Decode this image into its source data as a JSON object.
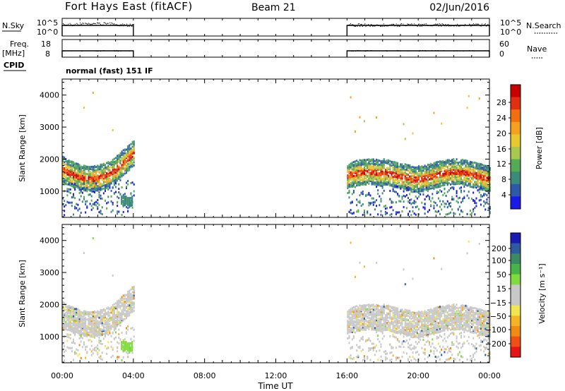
{
  "header": {
    "station": "Fort Hays East (fitACF)",
    "beam": "Beam 21",
    "date": "02/Jun/2016"
  },
  "status_panels": {
    "nsky_label": "N.Sky",
    "nsearch_label": "N.Search",
    "noise_ticks_left": [
      "10^5",
      "10^0"
    ],
    "noise_ticks_right": [
      "10^5",
      "10^0"
    ],
    "freq_label_1": "Freq.",
    "freq_label_2": "[MHz]",
    "freq_ticks": [
      "18",
      "8"
    ],
    "nave_label": "Nave",
    "nave_ticks": [
      "60",
      "0"
    ],
    "cpid_label": "CPID",
    "cpid_value": "normal (fast) 151 IF"
  },
  "chart_data": [
    {
      "type": "heatmap",
      "name": "power",
      "ylabel": "Slant Range [km]",
      "xlabel": "Time UT",
      "ylim": [
        180,
        4500
      ],
      "yticks": [
        "1000",
        "2000",
        "3000",
        "4000"
      ],
      "xticks": [
        "00:00",
        "04:00",
        "08:00",
        "12:00",
        "16:00",
        "20:00",
        "00:00"
      ],
      "xlim_hours": [
        0,
        24
      ],
      "data_intervals_hours": [
        [
          0,
          4.0
        ],
        [
          16.0,
          24.0
        ]
      ],
      "colorbar": {
        "label": "Power [dB]",
        "ticks": [
          "4",
          "8",
          "12",
          "16",
          "20",
          "24",
          "28"
        ],
        "colors": [
          "#1a1ae6",
          "#2e58a8",
          "#3c8a78",
          "#55aa55",
          "#a8c850",
          "#e8c830",
          "#f5a020",
          "#f07010",
          "#e03010",
          "#c80000"
        ]
      }
    },
    {
      "type": "heatmap",
      "name": "velocity",
      "ylabel": "Slant Range [km]",
      "xlabel": "Time UT",
      "ylim": [
        180,
        4500
      ],
      "yticks": [
        "1000",
        "2000",
        "3000",
        "4000"
      ],
      "xticks": [
        "00:00",
        "04:00",
        "08:00",
        "12:00",
        "16:00",
        "20:00",
        "00:00"
      ],
      "colorbar": {
        "label": "Velocity [m s⁻¹]",
        "ticks": [
          "200",
          "100",
          "50",
          "15",
          "−15",
          "−50",
          "−100",
          "−200"
        ],
        "colors": [
          "#1a1ab4",
          "#2e5aa0",
          "#3c8a64",
          "#46b446",
          "#80dc3c",
          "#c8c8c8",
          "#c8c8c8",
          "#f0e650",
          "#f5b428",
          "#f08c14",
          "#f05014",
          "#e61414"
        ]
      }
    }
  ]
}
